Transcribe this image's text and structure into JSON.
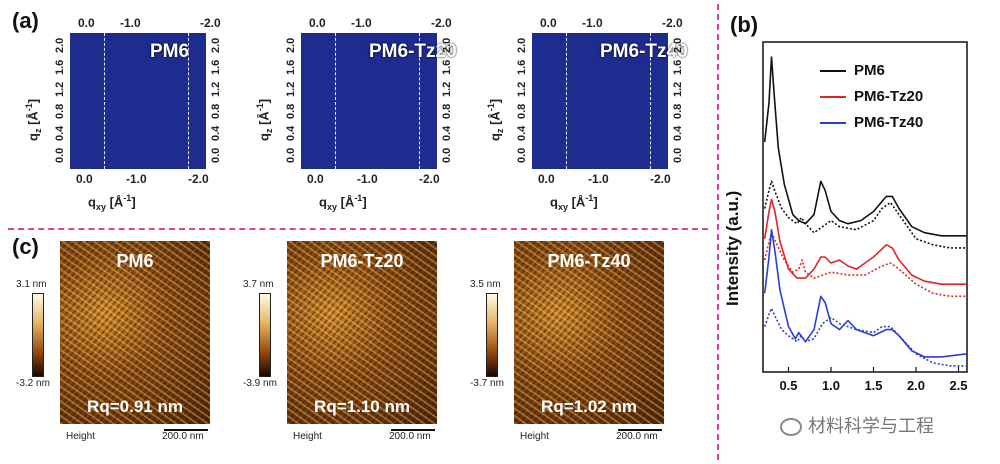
{
  "panels": {
    "a": "(a)",
    "b": "(b)",
    "c": "(c)"
  },
  "giwaxs": {
    "top_ticks": [
      "0.0",
      "-1.0",
      "-2.0"
    ],
    "bottom_ticks": [
      "0.0",
      "-1.0",
      "-2.0"
    ],
    "y_ticks": [
      "2.0",
      "1.6",
      "1.2",
      "0.8",
      "0.4",
      "0.0"
    ],
    "xlabel_main": "q",
    "xlabel_sub": "xy",
    "xlabel_unit": "[Å",
    "xlabel_exp": "-1",
    "xlabel_close": "]",
    "ylabel_main": "q",
    "ylabel_sub": "z",
    "ylabel_unit": "[Å",
    "ylabel_exp": "-1",
    "ylabel_close": "]",
    "samples": [
      "PM6",
      "PM6-Tz20",
      "PM6-Tz40"
    ]
  },
  "afm": {
    "samples": [
      {
        "name": "PM6",
        "rq": "Rq=0.91 nm",
        "cb_max": "3.1 nm",
        "cb_min": "-3.2 nm"
      },
      {
        "name": "PM6-Tz20",
        "rq": "Rq=1.10 nm",
        "cb_max": "3.7 nm",
        "cb_min": "-3.9 nm"
      },
      {
        "name": "PM6-Tz40",
        "rq": "Rq=1.02 nm",
        "cb_max": "3.5 nm",
        "cb_min": "-3.7 nm"
      }
    ],
    "height_label": "Height",
    "scale_label": "200.0 nm"
  },
  "chart_data": {
    "type": "line",
    "title": "",
    "xlabel": "",
    "ylabel": "Intensity (a.u.)",
    "xlim": [
      0.2,
      2.6
    ],
    "x_ticks": [
      "0.5",
      "1.0",
      "1.5",
      "2.0",
      "2.5"
    ],
    "x_tick_values": [
      0.5,
      1.0,
      1.5,
      2.0,
      2.5
    ],
    "legend": [
      "PM6",
      "PM6-Tz20",
      "PM6-Tz40"
    ],
    "legend_position": "top-right",
    "colors": {
      "PM6": "#111111",
      "PM6-Tz20": "#e02525",
      "PM6-Tz40": "#2a3fd0"
    },
    "series": [
      {
        "name": "PM6 (solid)",
        "color": "#111111",
        "style": "solid",
        "x": [
          0.22,
          0.27,
          0.3,
          0.33,
          0.38,
          0.45,
          0.55,
          0.62,
          0.7,
          0.8,
          0.88,
          0.93,
          1.0,
          1.1,
          1.2,
          1.35,
          1.5,
          1.65,
          1.72,
          1.8,
          1.95,
          2.1,
          2.3,
          2.6
        ],
        "y": [
          8.2,
          9.5,
          11.0,
          9.8,
          8.0,
          6.8,
          5.8,
          5.6,
          5.5,
          5.8,
          6.9,
          6.6,
          5.9,
          5.6,
          5.5,
          5.6,
          5.9,
          6.4,
          6.4,
          6.0,
          5.4,
          5.2,
          5.1,
          5.1
        ]
      },
      {
        "name": "PM6 (dotted)",
        "color": "#111111",
        "style": "dotted",
        "x": [
          0.22,
          0.27,
          0.3,
          0.35,
          0.42,
          0.5,
          0.6,
          0.65,
          0.7,
          0.8,
          0.9,
          1.0,
          1.1,
          1.3,
          1.5,
          1.6,
          1.7,
          1.8,
          2.0,
          2.2,
          2.4,
          2.6
        ],
        "y": [
          6.0,
          6.6,
          6.9,
          6.5,
          6.0,
          5.7,
          5.5,
          5.7,
          5.5,
          5.2,
          5.4,
          5.6,
          5.4,
          5.3,
          5.6,
          6.0,
          6.2,
          5.8,
          5.0,
          4.8,
          4.7,
          4.7
        ]
      },
      {
        "name": "PM6-Tz20 (solid)",
        "color": "#e02525",
        "style": "solid",
        "x": [
          0.22,
          0.27,
          0.3,
          0.34,
          0.4,
          0.5,
          0.6,
          0.7,
          0.8,
          0.88,
          0.93,
          1.0,
          1.1,
          1.2,
          1.3,
          1.5,
          1.65,
          1.72,
          1.8,
          1.95,
          2.1,
          2.3,
          2.6
        ],
        "y": [
          5.0,
          5.9,
          6.3,
          5.9,
          4.9,
          4.0,
          3.7,
          3.7,
          4.0,
          4.4,
          4.4,
          4.2,
          4.3,
          4.1,
          4.0,
          4.4,
          4.8,
          4.7,
          4.3,
          3.8,
          3.6,
          3.5,
          3.5
        ]
      },
      {
        "name": "PM6-Tz20 (dotted)",
        "color": "#e02525",
        "style": "dotted",
        "x": [
          0.22,
          0.27,
          0.3,
          0.35,
          0.45,
          0.55,
          0.62,
          0.66,
          0.7,
          0.8,
          0.9,
          1.0,
          1.2,
          1.4,
          1.6,
          1.7,
          1.8,
          2.0,
          2.2,
          2.4,
          2.6
        ],
        "y": [
          4.3,
          4.9,
          5.2,
          4.9,
          4.3,
          3.9,
          4.0,
          4.3,
          3.9,
          3.7,
          3.8,
          3.9,
          3.8,
          3.8,
          4.1,
          4.2,
          4.0,
          3.5,
          3.2,
          3.1,
          3.1
        ]
      },
      {
        "name": "PM6-Tz40 (solid)",
        "color": "#2a3fd0",
        "style": "solid",
        "x": [
          0.22,
          0.27,
          0.3,
          0.34,
          0.4,
          0.5,
          0.58,
          0.62,
          0.7,
          0.8,
          0.88,
          0.93,
          1.0,
          1.1,
          1.2,
          1.3,
          1.5,
          1.65,
          1.72,
          1.8,
          1.95,
          2.1,
          2.3,
          2.6
        ],
        "y": [
          3.2,
          4.4,
          5.3,
          4.6,
          3.3,
          2.1,
          1.7,
          1.9,
          1.6,
          2.0,
          3.1,
          2.9,
          2.2,
          2.0,
          2.3,
          2.0,
          1.8,
          2.0,
          2.0,
          1.8,
          1.3,
          1.1,
          1.1,
          1.2
        ]
      },
      {
        "name": "PM6-Tz40 (dotted)",
        "color": "#2a3fd0",
        "style": "dotted",
        "x": [
          0.22,
          0.27,
          0.3,
          0.35,
          0.42,
          0.5,
          0.6,
          0.65,
          0.7,
          0.8,
          0.9,
          1.0,
          1.1,
          1.3,
          1.5,
          1.6,
          1.7,
          1.8,
          2.0,
          2.2,
          2.4,
          2.6
        ],
        "y": [
          2.1,
          2.5,
          2.7,
          2.4,
          2.0,
          1.8,
          1.6,
          1.8,
          1.6,
          1.7,
          2.2,
          2.4,
          2.2,
          2.0,
          1.9,
          2.1,
          2.1,
          1.8,
          1.2,
          0.9,
          0.8,
          0.8
        ]
      }
    ]
  },
  "watermark": "材料科学与工程"
}
